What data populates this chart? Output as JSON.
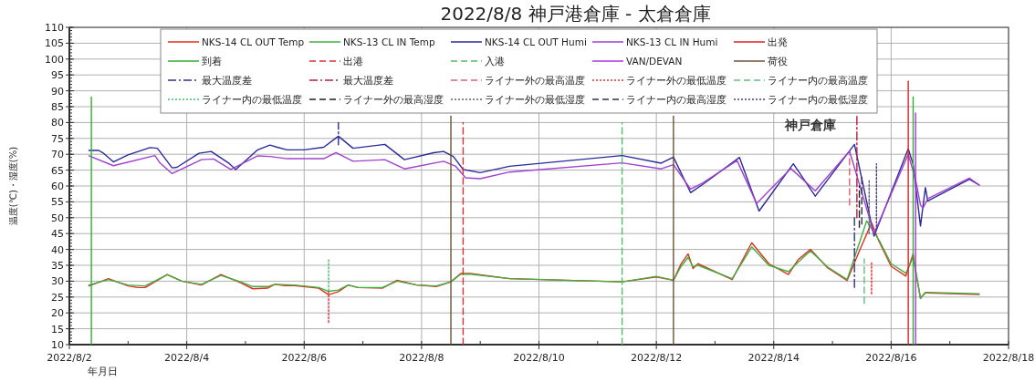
{
  "chart_data": {
    "type": "line",
    "title": "2022/8/8 神戸港倉庫 - 太倉倉庫",
    "xlabel": "年月日",
    "ylabel": "温度(℃)・湿度(%)",
    "xlim": [
      "2022-08-02",
      "2022-08-18"
    ],
    "xticks": [
      {
        "value": "2022-08-02",
        "label": "2022/8/2"
      },
      {
        "value": "2022-08-04",
        "label": "2022/8/4"
      },
      {
        "value": "2022-08-06",
        "label": "2022/8/6"
      },
      {
        "value": "2022-08-08",
        "label": "2022/8/8"
      },
      {
        "value": "2022-08-10",
        "label": "2022/8/10"
      },
      {
        "value": "2022-08-12",
        "label": "2022/8/12"
      },
      {
        "value": "2022-08-14",
        "label": "2022/8/14"
      },
      {
        "value": "2022-08-16",
        "label": "2022/8/16"
      },
      {
        "value": "2022-08-18",
        "label": "2022/8/18"
      }
    ],
    "ylim": [
      10,
      110
    ],
    "yticks": [
      10,
      15,
      20,
      25,
      30,
      35,
      40,
      45,
      50,
      55,
      60,
      65,
      70,
      75,
      80,
      85,
      90,
      95,
      100,
      105,
      110
    ],
    "grid": true,
    "legend": "top",
    "annotations": [
      "神戸倉庫"
    ],
    "series": [
      {
        "name": "NKS-14 CL OUT Temp",
        "color": "#e03020",
        "line_style": "solid",
        "x": [
          "2022-08-02T08:00",
          "2022-08-02T16:00",
          "2022-08-03T00:00",
          "2022-08-03T04:00",
          "2022-08-03T07:00",
          "2022-08-03T16:00",
          "2022-08-03T22:00",
          "2022-08-04T06:00",
          "2022-08-04T14:00",
          "2022-08-04T22:00",
          "2022-08-05T03:00",
          "2022-08-05T09:00",
          "2022-08-05T12:00",
          "2022-08-05T16:00",
          "2022-08-05T20:00",
          "2022-08-06T06:00",
          "2022-08-06T10:00",
          "2022-08-06T14:00",
          "2022-08-06T18:00",
          "2022-08-06T22:00",
          "2022-08-07T08:00",
          "2022-08-07T14:00",
          "2022-08-07T22:00",
          "2022-08-08T06:00",
          "2022-08-08T12:00",
          "2022-08-08T16:00",
          "2022-08-08T20:00",
          "2022-08-09T12:00",
          "2022-08-11T10:00",
          "2022-08-12T00:00",
          "2022-08-12T07:00",
          "2022-08-12T10:00",
          "2022-08-12T13:00",
          "2022-08-12T15:00",
          "2022-08-12T17:00",
          "2022-08-13T07:00",
          "2022-08-13T15:00",
          "2022-08-13T22:00",
          "2022-08-14T06:00",
          "2022-08-14T10:00",
          "2022-08-14T15:00",
          "2022-08-14T22:00",
          "2022-08-15T06:00",
          "2022-08-15T11:00",
          "2022-08-15T16:00",
          "2022-08-15T19:00",
          "2022-08-16T00:00",
          "2022-08-16T06:00",
          "2022-08-16T09:00",
          "2022-08-16T10:00",
          "2022-08-16T12:00",
          "2022-08-16T14:00",
          "2022-08-17T12:00"
        ],
        "values": [
          28.5,
          30.8,
          28.5,
          28,
          28,
          32.1,
          30,
          28.8,
          32.1,
          29.5,
          27.6,
          27.8,
          29,
          28.6,
          28.6,
          27.8,
          25.7,
          26.7,
          28.8,
          28,
          27.8,
          30.3,
          28.8,
          28.3,
          29.8,
          32.4,
          32.4,
          30.8,
          29.8,
          31.3,
          30.3,
          35.3,
          38.6,
          34,
          35.5,
          30.5,
          42.1,
          35.5,
          32.1,
          36.8,
          40,
          34.2,
          30.2,
          39.5,
          48.4,
          42.6,
          34.7,
          31.6,
          38.6,
          33.2,
          24.7,
          26.3,
          25.8
        ]
      },
      {
        "name": "NKS-13 CL IN Temp",
        "color": "#40b040",
        "line_style": "solid",
        "x": [
          "2022-08-02T08:00",
          "2022-08-02T16:00",
          "2022-08-03T00:00",
          "2022-08-03T07:00",
          "2022-08-03T16:00",
          "2022-08-03T22:00",
          "2022-08-04T06:00",
          "2022-08-04T14:00",
          "2022-08-04T22:00",
          "2022-08-05T03:00",
          "2022-08-05T09:00",
          "2022-08-05T12:00",
          "2022-08-05T20:00",
          "2022-08-06T06:00",
          "2022-08-06T10:00",
          "2022-08-06T14:00",
          "2022-08-06T18:00",
          "2022-08-06T22:00",
          "2022-08-07T08:00",
          "2022-08-07T14:00",
          "2022-08-07T22:00",
          "2022-08-08T06:00",
          "2022-08-08T12:00",
          "2022-08-08T16:00",
          "2022-08-08T20:00",
          "2022-08-09T12:00",
          "2022-08-11T10:00",
          "2022-08-12T00:00",
          "2022-08-12T07:00",
          "2022-08-12T10:00",
          "2022-08-12T13:00",
          "2022-08-12T15:00",
          "2022-08-12T17:00",
          "2022-08-13T07:00",
          "2022-08-13T15:00",
          "2022-08-13T22:00",
          "2022-08-14T06:00",
          "2022-08-14T10:00",
          "2022-08-14T15:00",
          "2022-08-14T22:00",
          "2022-08-15T06:00",
          "2022-08-15T14:00",
          "2022-08-15T19:00",
          "2022-08-16T00:00",
          "2022-08-16T06:00",
          "2022-08-16T09:00",
          "2022-08-16T10:00",
          "2022-08-16T12:00",
          "2022-08-16T14:00",
          "2022-08-17T12:00"
        ],
        "values": [
          28.8,
          30.5,
          28.8,
          28.5,
          32,
          30,
          29,
          31.8,
          29.8,
          28.3,
          28.3,
          29,
          28.8,
          28,
          26.8,
          27.2,
          28.8,
          28,
          28,
          30,
          28.8,
          28.5,
          29.8,
          32.2,
          32.2,
          30.8,
          29.8,
          31.5,
          30.3,
          34.5,
          37.5,
          34.5,
          35,
          30.8,
          40.8,
          35,
          33,
          36,
          39.5,
          34.5,
          30.5,
          49,
          43,
          35.5,
          32.5,
          37.5,
          33.5,
          24.5,
          26.5,
          26
        ]
      },
      {
        "name": "NKS-14 CL OUT Humi",
        "color": "#2a2a9a",
        "line_style": "solid",
        "x": [
          "2022-08-02T08:00",
          "2022-08-02T12:00",
          "2022-08-02T14:00",
          "2022-08-02T18:00",
          "2022-08-03T00:00",
          "2022-08-03T09:00",
          "2022-08-03T12:00",
          "2022-08-03T18:00",
          "2022-08-03T20:00",
          "2022-08-04T05:00",
          "2022-08-04T10:00",
          "2022-08-04T17:00",
          "2022-08-04T20:00",
          "2022-08-05T05:00",
          "2022-08-05T10:00",
          "2022-08-05T13:00",
          "2022-08-05T17:00",
          "2022-08-06T00:00",
          "2022-08-06T08:00",
          "2022-08-06T14:00",
          "2022-08-06T20:00",
          "2022-08-07T09:00",
          "2022-08-07T17:00",
          "2022-08-08T05:00",
          "2022-08-08T09:00",
          "2022-08-08T13:00",
          "2022-08-08T17:00",
          "2022-08-09T00:00",
          "2022-08-09T12:00",
          "2022-08-11T10:00",
          "2022-08-12T02:00",
          "2022-08-12T07:00",
          "2022-08-12T14:00",
          "2022-08-12T19:00",
          "2022-08-13T10:00",
          "2022-08-13T18:00",
          "2022-08-14T08:00",
          "2022-08-14T17:00",
          "2022-08-15T09:00",
          "2022-08-15T17:00",
          "2022-08-16T07:00",
          "2022-08-16T09:00",
          "2022-08-16T12:00",
          "2022-08-16T14:00",
          "2022-08-16T15:00",
          "2022-08-17T08:00",
          "2022-08-17T12:00"
        ],
        "values": [
          71.2,
          71.2,
          70.3,
          67.6,
          69.8,
          72.1,
          71.9,
          65.7,
          65.9,
          70.3,
          70.9,
          67.3,
          65.2,
          71.4,
          72.9,
          72.2,
          71.4,
          71.4,
          72.2,
          75.7,
          71.9,
          73.1,
          68.3,
          70.5,
          70.9,
          69.3,
          65.2,
          64.2,
          66.2,
          69.6,
          67.2,
          69.1,
          57.9,
          60.5,
          69,
          52.1,
          67,
          56.8,
          73.1,
          44.2,
          71.7,
          66.8,
          47.4,
          59.5,
          55.3,
          62.1,
          60.3
        ]
      },
      {
        "name": "NKS-13 CL IN Humi",
        "color": "#a040d0",
        "line_style": "solid",
        "x": [
          "2022-08-02T08:00",
          "2022-08-02T18:00",
          "2022-08-03T11:00",
          "2022-08-03T13:00",
          "2022-08-03T18:00",
          "2022-08-04T06:00",
          "2022-08-04T11:00",
          "2022-08-04T18:00",
          "2022-08-05T05:00",
          "2022-08-05T10:00",
          "2022-08-05T17:00",
          "2022-08-06T08:00",
          "2022-08-06T13:00",
          "2022-08-06T20:00",
          "2022-08-07T09:00",
          "2022-08-07T17:00",
          "2022-08-08T09:00",
          "2022-08-08T14:00",
          "2022-08-08T18:00",
          "2022-08-09T00:00",
          "2022-08-09T12:00",
          "2022-08-11T10:00",
          "2022-08-12T02:00",
          "2022-08-12T07:00",
          "2022-08-12T14:00",
          "2022-08-12T19:00",
          "2022-08-13T09:00",
          "2022-08-13T17:00",
          "2022-08-14T07:00",
          "2022-08-14T17:00",
          "2022-08-15T07:00",
          "2022-08-15T17:00",
          "2022-08-16T07:00",
          "2022-08-16T10:00",
          "2022-08-16T12:00",
          "2022-08-16T13:00",
          "2022-08-16T15:00",
          "2022-08-17T08:00",
          "2022-08-17T12:00"
        ],
        "values": [
          69.5,
          66.4,
          69.6,
          67.3,
          63.9,
          68.3,
          68.5,
          65.2,
          69.5,
          69.3,
          68.6,
          68.6,
          70.5,
          67.8,
          68.3,
          65.4,
          67.8,
          66.2,
          62.6,
          62.3,
          64.4,
          67.3,
          65.4,
          66.7,
          59,
          61,
          68,
          54.5,
          65.5,
          58.5,
          71,
          45,
          70,
          62,
          54,
          53,
          56,
          62.5,
          60.3
        ]
      },
      {
        "name": "出発",
        "color": "#e02020",
        "line_style": "solid",
        "x": [
          "2022-08-16T07:00",
          "2022-08-16T07:00"
        ],
        "values": [
          10,
          93
        ]
      },
      {
        "name": "到着",
        "color": "#30b030",
        "line_style": "solid",
        "x": [
          "2022-08-02T09:00",
          "2022-08-02T09:00"
        ],
        "values": [
          10,
          88
        ]
      },
      {
        "color": "#30b030",
        "line_style": "solid",
        "x": [
          "2022-08-16T09:00",
          "2022-08-16T09:00"
        ],
        "values": [
          10,
          88
        ]
      },
      {
        "name": "出港",
        "color": "#e03030",
        "line_style": "dashed",
        "x": [
          "2022-08-08T17:00",
          "2022-08-08T17:00"
        ],
        "values": [
          10,
          80
        ]
      },
      {
        "name": "入港",
        "color": "#50c060",
        "line_style": "dashed",
        "x": [
          "2022-08-11T10:00",
          "2022-08-11T10:00"
        ],
        "values": [
          10,
          80
        ]
      },
      {
        "name": "VAN/DEVAN",
        "color": "#b030e0",
        "line_style": "solid",
        "x": [
          "2022-08-16T10:00",
          "2022-08-16T10:00"
        ],
        "values": [
          10,
          83
        ]
      },
      {
        "name": "荷役",
        "color": "#705030",
        "line_style": "solid",
        "x": [
          "2022-08-08T12:00",
          "2022-08-08T12:00"
        ],
        "values": [
          10,
          82
        ]
      },
      {
        "color": "#705030",
        "line_style": "solid",
        "x": [
          "2022-08-12T07:00",
          "2022-08-12T07:00"
        ],
        "values": [
          10,
          82
        ]
      },
      {
        "name": "最大温度差",
        "color": "#303090",
        "line_style": "dashdot",
        "x": [
          "2022-08-06T14:00",
          "2022-08-06T14:00"
        ],
        "values": [
          73,
          80
        ]
      },
      {
        "color": "#303090",
        "line_style": "dashdot",
        "x": [
          "2022-08-15T09:00",
          "2022-08-15T09:00"
        ],
        "values": [
          28,
          50
        ]
      },
      {
        "name": "最大温度差",
        "color": "#b02040",
        "line_style": "dashdot",
        "x": [
          "2022-08-15T10:00",
          "2022-08-15T10:00"
        ],
        "values": [
          50,
          82
        ]
      },
      {
        "name": "ライナー外の最高温度",
        "color": "#e06070",
        "line_style": "dashed",
        "x": [
          "2022-08-15T07:00",
          "2022-08-15T07:00"
        ],
        "values": [
          54,
          70
        ]
      },
      {
        "name": "ライナー外の最低温度",
        "color": "#e03030",
        "line_style": "dotted",
        "x": [
          "2022-08-06T10:00",
          "2022-08-06T10:00"
        ],
        "values": [
          17,
          27
        ]
      },
      {
        "color": "#e03030",
        "line_style": "dotted",
        "x": [
          "2022-08-15T16:00",
          "2022-08-15T16:00"
        ],
        "values": [
          26,
          36
        ]
      },
      {
        "name": "ライナー内の最高温度",
        "color": "#60c080",
        "line_style": "dashed",
        "x": [
          "2022-08-15T13:00",
          "2022-08-15T13:00"
        ],
        "values": [
          23,
          37
        ]
      },
      {
        "name": "ライナー内の最低温度",
        "color": "#40c070",
        "line_style": "dotted",
        "x": [
          "2022-08-06T10:00",
          "2022-08-06T10:00"
        ],
        "values": [
          27,
          37
        ]
      },
      {
        "name": "ライナー外の最高湿度",
        "color": "#202020",
        "line_style": "dashed",
        "x": [
          "2022-08-15T11:00",
          "2022-08-15T11:00"
        ],
        "values": [
          47,
          60
        ]
      },
      {
        "name": "ライナー外の最低湿度",
        "color": "#606070",
        "line_style": "dotted",
        "x": [
          "2022-08-15T15:00",
          "2022-08-15T15:00"
        ],
        "values": [
          45,
          62
        ]
      },
      {
        "name": "ライナー内の最高湿度",
        "color": "#303050",
        "line_style": "dashed",
        "x": [
          "2022-08-15T12:00",
          "2022-08-15T12:00"
        ],
        "values": [
          48,
          63
        ]
      },
      {
        "name": "ライナー内の最低湿度",
        "color": "#404080",
        "line_style": "dotted",
        "x": [
          "2022-08-15T18:00",
          "2022-08-15T18:00"
        ],
        "values": [
          46,
          67
        ]
      }
    ]
  }
}
